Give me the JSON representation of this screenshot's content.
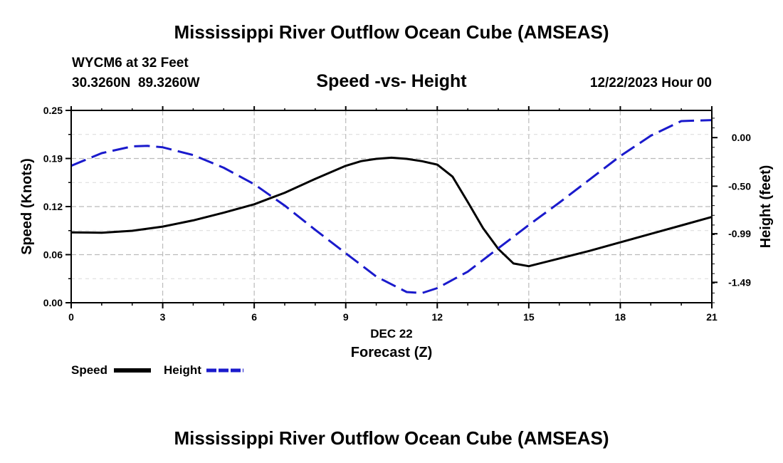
{
  "header": {
    "title": "Mississippi River Outflow Ocean Cube (AMSEAS)",
    "station": "WYCM6 at 32 Feet",
    "coords": "30.3260N  89.3260W",
    "subtitle": "Speed -vs- Height",
    "datetime": "12/22/2023 Hour 00"
  },
  "footer": {
    "title": "Mississippi River Outflow Ocean Cube (AMSEAS)"
  },
  "legend": {
    "speed_label": "Speed",
    "height_label": "Height"
  },
  "colors": {
    "speed": "#000000",
    "height": "#1a1acc",
    "grid": "#bbbbbb"
  },
  "chart_data": {
    "type": "line",
    "xlabel_date": "DEC 22",
    "xlabel": "Forecast (Z)",
    "ylabel_left": "Speed (Knots)",
    "ylabel_right": "Height (feet)",
    "xlim": [
      0,
      21
    ],
    "ylim_left": [
      0,
      0.25
    ],
    "ylim_right": [
      -1.7,
      0.28
    ],
    "x_ticks": [
      0,
      3,
      6,
      9,
      12,
      15,
      18,
      21
    ],
    "x_tick_labels": [
      "0",
      "3",
      "6",
      "9",
      "12",
      "15",
      "18",
      "21"
    ],
    "y_left_ticks": [
      0,
      0.0625,
      0.125,
      0.1875,
      0.25
    ],
    "y_left_tick_labels": [
      "0.00",
      "0.06",
      "0.12",
      "0.19",
      "0.25"
    ],
    "y_right_ticks": [
      0.0,
      -0.5,
      -0.99,
      -1.49
    ],
    "y_right_tick_labels": [
      "0.00",
      "-0.50",
      "-0.99",
      "-1.49"
    ],
    "series": [
      {
        "name": "Speed",
        "axis": "left",
        "style": "solid",
        "x": [
          0,
          1,
          2,
          3,
          4,
          5,
          6,
          7,
          8,
          9,
          9.5,
          10,
          10.5,
          11,
          11.5,
          12,
          12.5,
          13,
          13.5,
          14,
          14.5,
          15,
          16,
          17,
          18,
          19,
          20,
          21
        ],
        "values": [
          0.0915,
          0.091,
          0.0935,
          0.099,
          0.107,
          0.117,
          0.128,
          0.143,
          0.161,
          0.178,
          0.184,
          0.187,
          0.1885,
          0.187,
          0.184,
          0.1795,
          0.164,
          0.131,
          0.097,
          0.07,
          0.051,
          0.0475,
          0.0575,
          0.0675,
          0.0785,
          0.0895,
          0.1005,
          0.1115
        ]
      },
      {
        "name": "Height",
        "axis": "right",
        "style": "dashed",
        "x": [
          0,
          1,
          2,
          2.5,
          3,
          4,
          5,
          6,
          7,
          8,
          9,
          10,
          11,
          11.5,
          12,
          13,
          14,
          15,
          16,
          17,
          18,
          19,
          20,
          21
        ],
        "values": [
          -0.29,
          -0.16,
          -0.09,
          -0.085,
          -0.1,
          -0.18,
          -0.31,
          -0.48,
          -0.7,
          -0.95,
          -1.19,
          -1.43,
          -1.59,
          -1.6,
          -1.55,
          -1.38,
          -1.14,
          -0.9,
          -0.67,
          -0.43,
          -0.19,
          0.02,
          0.17,
          0.18
        ]
      }
    ]
  }
}
